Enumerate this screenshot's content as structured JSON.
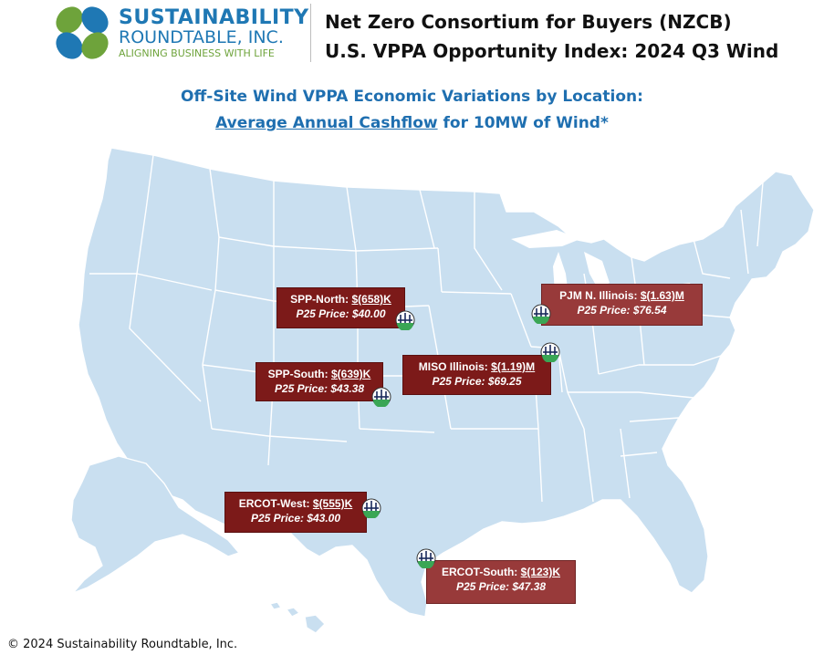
{
  "logo": {
    "line1": "SUSTAINABILITY",
    "line2": "ROUNDTABLE, INC.",
    "tagline": "ALIGNING BUSINESS WITH LIFE",
    "colors": {
      "blue": "#1f78b4",
      "green": "#6ea33b"
    }
  },
  "header": {
    "line1": "Net Zero Consortium for Buyers (NZCB)",
    "line2": "U.S. VPPA Opportunity Index: 2024 Q3 Wind"
  },
  "subtitle": {
    "line1": "Off-Site Wind VPPA Economic Variations by Location:",
    "line2_underlined": "Average Annual Cashflow",
    "line2_rest": " for 10MW of Wind*"
  },
  "map": {
    "fill": "#c9dff0",
    "stroke": "#ffffff",
    "icon": "wind-turbine-icon"
  },
  "locations": [
    {
      "name": "SPP-North:",
      "value": "$(658)K",
      "price": "P25 Price: $40.00"
    },
    {
      "name": "PJM N. Illinois:",
      "value": "$(1.63)M",
      "price": "P25 Price: $76.54"
    },
    {
      "name": "SPP-South:",
      "value": "$(639)K",
      "price": "P25 Price: $43.38"
    },
    {
      "name": "MISO Illinois:",
      "value": "$(1.19)M",
      "price": "P25 Price: $69.25"
    },
    {
      "name": "ERCOT-West:",
      "value": "$(555)K",
      "price": "P25 Price: $43.00"
    },
    {
      "name": "ERCOT-South:",
      "value": "$(123)K",
      "price": "P25 Price: $47.38"
    }
  ],
  "footer": "© 2024 Sustainability Roundtable, Inc."
}
